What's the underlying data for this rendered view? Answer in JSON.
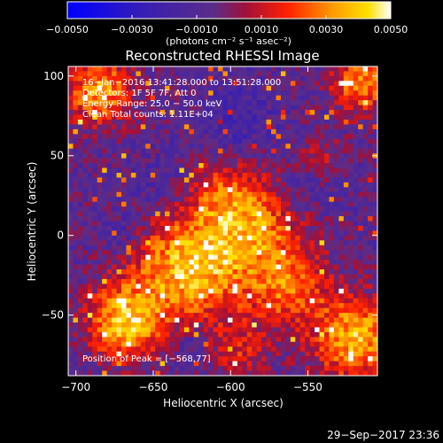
{
  "chart_data": {
    "type": "heatmap",
    "title": "Reconstructed RHESSI Image",
    "xlabel": "Heliocentric X (arcsec)",
    "ylabel": "Heliocentric Y (arcsec)",
    "xlim": [
      -705,
      -505
    ],
    "ylim": [
      -88,
      106
    ],
    "xticks": [
      -700,
      -650,
      -600,
      -550
    ],
    "xtick_labels": [
      "−700",
      "−650",
      "−600",
      "−550"
    ],
    "yticks": [
      -50,
      0,
      50,
      100
    ],
    "ytick_labels": [
      "−50",
      "0",
      "50",
      "100"
    ],
    "colorbar": {
      "range": [
        -0.005,
        0.005
      ],
      "ticks": [
        -0.005,
        -0.003,
        -0.001,
        0.001,
        0.003,
        0.005
      ],
      "tick_labels": [
        "−0.0050",
        "−0.0030",
        "−0.0010",
        "0.0010",
        "0.0030",
        "0.0050"
      ],
      "unit_label": "(photons cm⁻² s⁻¹ asec⁻²)"
    },
    "annotations": [
      "16−Jan−2016 13:41:28.000 to 13:51:28.000",
      "Detectors: 1F 5F 7F, Att 0",
      "Energy Range: 25.0 − 50.0 keV",
      "Clean      Total counts: 1.11E+04"
    ],
    "peak_label": "Position of Peak = [−568,77]",
    "peak": [
      -568,
      77
    ],
    "timestamp": "29−Sep−2017 23:36"
  }
}
